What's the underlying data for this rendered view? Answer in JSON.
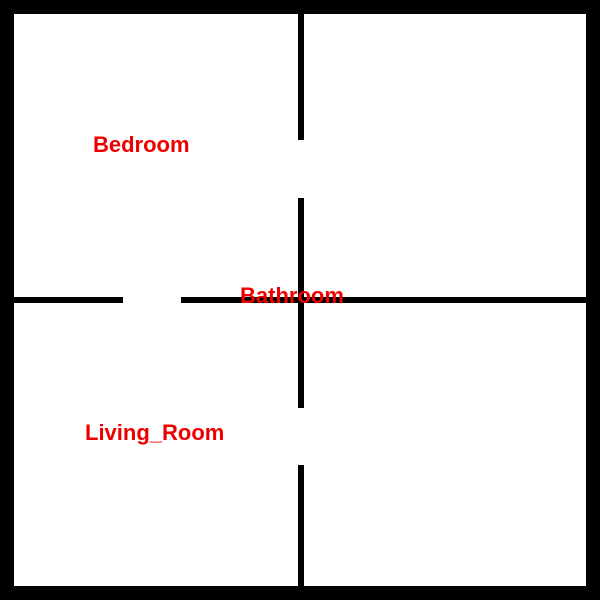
{
  "floorplan": {
    "colors": {
      "background": "#ffffff",
      "wall": "#000000",
      "label": "#ee0000"
    },
    "rooms": [
      {
        "id": "bedroom",
        "label": "Bedroom"
      },
      {
        "id": "bathroom",
        "label": "Bathroom"
      },
      {
        "id": "living-room",
        "label": "Living_Room"
      }
    ]
  }
}
